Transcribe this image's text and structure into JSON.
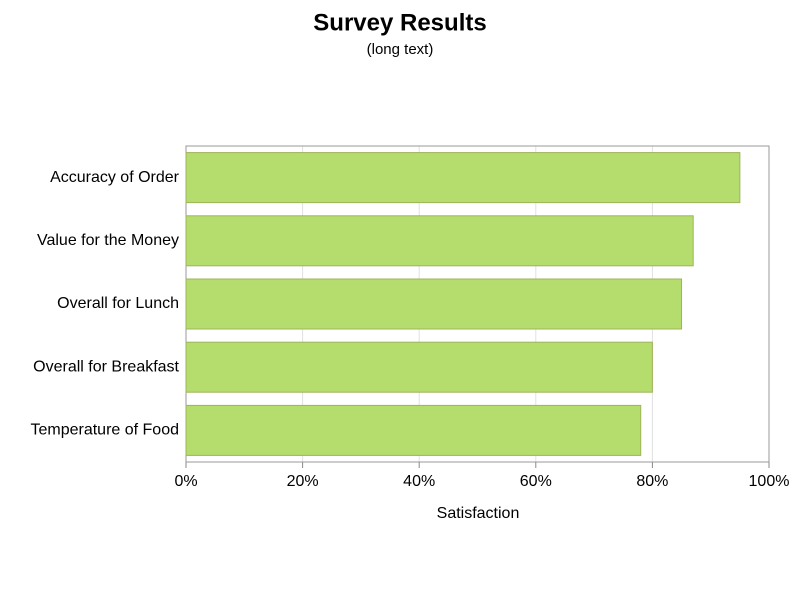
{
  "chart_data": {
    "type": "hbar",
    "title": "Survey Results",
    "subtitle": "(long text)",
    "xlabel": "Satisfaction",
    "categories": [
      "Accuracy of Order",
      "Value for the Money",
      "Overall for Lunch",
      "Overall for Breakfast",
      "Temperature of Food"
    ],
    "values": [
      95,
      87,
      85,
      80,
      78
    ],
    "color": "#b5dd6e",
    "xlim": [
      0,
      100
    ],
    "xticks": [
      {
        "value": 0,
        "label": "0%"
      },
      {
        "value": 20,
        "label": "20%"
      },
      {
        "value": 40,
        "label": "40%"
      },
      {
        "value": 60,
        "label": "60%"
      },
      {
        "value": 80,
        "label": "80%"
      },
      {
        "value": 100,
        "label": "100%"
      }
    ],
    "grid": true
  }
}
